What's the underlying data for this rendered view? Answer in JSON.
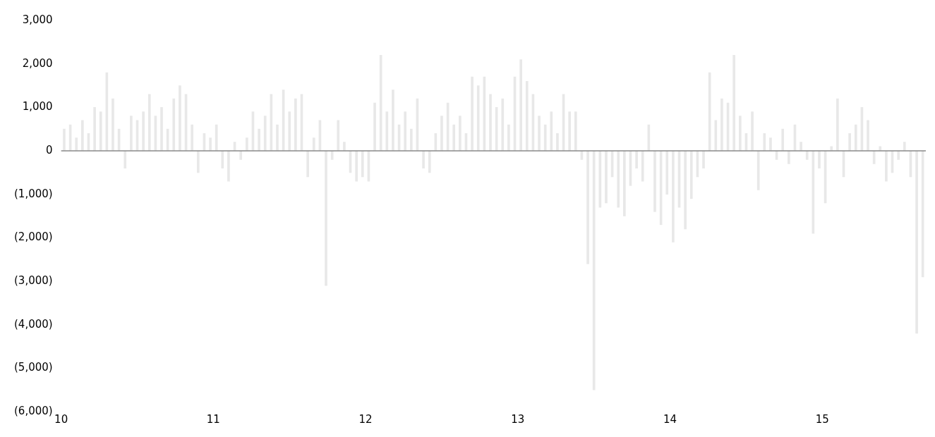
{
  "chart_data": {
    "type": "bar",
    "color": "#e8e8e8",
    "x": [
      10.02,
      10.06,
      10.1,
      10.14,
      10.18,
      10.22,
      10.26,
      10.3,
      10.34,
      10.38,
      10.42,
      10.46,
      10.5,
      10.54,
      10.58,
      10.62,
      10.66,
      10.7,
      10.74,
      10.78,
      10.82,
      10.86,
      10.9,
      10.94,
      10.98,
      11.02,
      11.06,
      11.1,
      11.14,
      11.18,
      11.22,
      11.26,
      11.3,
      11.34,
      11.38,
      11.42,
      11.46,
      11.5,
      11.54,
      11.58,
      11.62,
      11.66,
      11.7,
      11.74,
      11.78,
      11.82,
      11.86,
      11.9,
      11.94,
      11.98,
      12.02,
      12.06,
      12.1,
      12.14,
      12.18,
      12.22,
      12.26,
      12.3,
      12.34,
      12.38,
      12.42,
      12.46,
      12.5,
      12.54,
      12.58,
      12.62,
      12.66,
      12.7,
      12.74,
      12.78,
      12.82,
      12.86,
      12.9,
      12.94,
      12.98,
      13.02,
      13.06,
      13.1,
      13.14,
      13.18,
      13.22,
      13.26,
      13.3,
      13.34,
      13.38,
      13.42,
      13.46,
      13.5,
      13.54,
      13.58,
      13.62,
      13.66,
      13.7,
      13.74,
      13.78,
      13.82,
      13.86,
      13.9,
      13.94,
      13.98,
      14.02,
      14.06,
      14.1,
      14.14,
      14.18,
      14.22,
      14.26,
      14.3,
      14.34,
      14.38,
      14.42,
      14.46,
      14.5,
      14.54,
      14.58,
      14.62,
      14.66,
      14.7,
      14.74,
      14.78,
      14.82,
      14.86,
      14.9,
      14.94,
      14.98,
      15.02,
      15.06,
      15.1,
      15.14,
      15.18,
      15.22,
      15.26,
      15.3,
      15.34,
      15.38,
      15.42,
      15.46,
      15.5,
      15.54,
      15.58,
      15.62,
      15.66
    ],
    "values": [
      500,
      600,
      300,
      700,
      400,
      1000,
      900,
      1800,
      1200,
      500,
      -400,
      800,
      700,
      900,
      1300,
      800,
      1000,
      500,
      1200,
      1500,
      1300,
      600,
      -500,
      400,
      300,
      600,
      -400,
      -700,
      200,
      -200,
      300,
      900,
      500,
      800,
      1300,
      600,
      1400,
      900,
      1200,
      1300,
      -600,
      300,
      700,
      -3100,
      -200,
      700,
      200,
      -500,
      -700,
      -600,
      -700,
      1100,
      2200,
      900,
      1400,
      600,
      900,
      500,
      1200,
      -400,
      -500,
      400,
      800,
      1100,
      600,
      800,
      400,
      1700,
      1500,
      1700,
      1300,
      1000,
      1200,
      600,
      1700,
      2100,
      1600,
      1300,
      800,
      600,
      900,
      400,
      1300,
      900,
      900,
      -200,
      -2600,
      -5500,
      -1300,
      -1200,
      -600,
      -1300,
      -1500,
      -800,
      -400,
      -700,
      600,
      -1400,
      -1700,
      -1000,
      -2100,
      -1300,
      -1800,
      -1100,
      -600,
      -400,
      1800,
      700,
      1200,
      1100,
      2200,
      800,
      400,
      900,
      -900,
      400,
      300,
      -200,
      500,
      -300,
      600,
      200,
      -200,
      -1900,
      -400,
      -1200,
      100,
      1200,
      -600,
      400,
      600,
      1000,
      700,
      -300,
      100,
      -700,
      -500,
      -200,
      200,
      -600,
      -4200,
      -2900
    ],
    "xlim": [
      10,
      15.68
    ],
    "xticks": [
      10,
      11,
      12,
      13,
      14,
      15
    ],
    "ylim": [
      -6000,
      3000
    ],
    "yticks": [
      {
        "value": -6000,
        "label": "(6,000)"
      },
      {
        "value": -5000,
        "label": "(5,000)"
      },
      {
        "value": -4000,
        "label": "(4,000)"
      },
      {
        "value": -3000,
        "label": "(3,000)"
      },
      {
        "value": -2000,
        "label": "(2,000)"
      },
      {
        "value": -1000,
        "label": "(1,000)"
      },
      0,
      {
        "value": 1000,
        "label": "1,000"
      },
      {
        "value": 2000,
        "label": "2,000"
      },
      {
        "value": 3000,
        "label": "3,000"
      }
    ],
    "ref_lines": [
      {
        "axis": "y",
        "value": 0,
        "color": "#8a8a8a"
      }
    ],
    "grid": false,
    "legend": false
  }
}
